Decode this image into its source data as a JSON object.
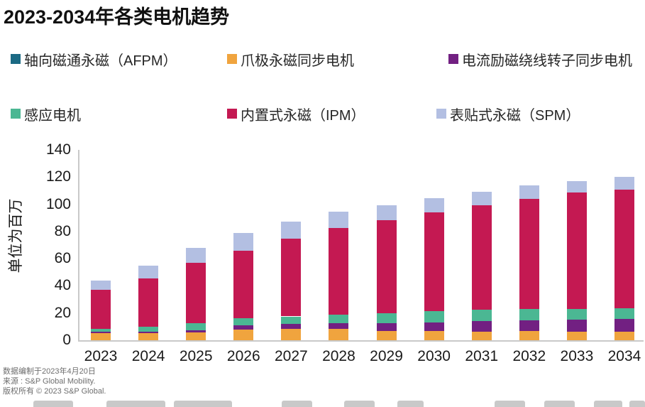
{
  "title": "2023-2034年各类电机趋势",
  "legend": {
    "items": [
      {
        "label": "轴向磁通永磁（AFPM）",
        "color": "#1b6a84"
      },
      {
        "label": "爪极永磁同步电机",
        "color": "#f0a43e"
      },
      {
        "label": "电流励磁绕线转子同步电机",
        "color": "#722082"
      },
      {
        "label": "感应电机",
        "color": "#4bb793"
      },
      {
        "label": "内置式永磁（IPM）",
        "color": "#c41952"
      },
      {
        "label": "表贴式永磁（SPM）",
        "color": "#b3bfe2"
      }
    ]
  },
  "chart_data": {
    "type": "bar",
    "stacked": true,
    "title": "2023-2034年各类电机趋势",
    "xlabel": "",
    "ylabel": "单位为百万",
    "ylim": [
      0,
      140
    ],
    "ytick_step": 20,
    "grid": false,
    "legend_position": "top",
    "categories": [
      "2023",
      "2024",
      "2025",
      "2026",
      "2027",
      "2028",
      "2029",
      "2030",
      "2031",
      "2032",
      "2033",
      "2034"
    ],
    "series": [
      {
        "name": "轴向磁通永磁（AFPM）",
        "color": "#1b6a84",
        "values": [
          0,
          0,
          0,
          0,
          0,
          0,
          0,
          0,
          0,
          0,
          0,
          0
        ]
      },
      {
        "name": "爪极永磁同步电机",
        "color": "#f0a43e",
        "values": [
          5,
          5,
          6,
          8,
          8.5,
          8.5,
          7,
          7,
          6.5,
          7,
          6.5,
          6.5
        ]
      },
      {
        "name": "电流励磁绕线转子同步电机",
        "color": "#722082",
        "values": [
          1.5,
          1.5,
          1.5,
          3,
          3.5,
          4,
          5.5,
          6,
          7.5,
          7.5,
          8.5,
          9
        ]
      },
      {
        "name": "感应电机",
        "color": "#4bb793",
        "values": [
          2,
          3.5,
          5,
          5,
          5.5,
          6.5,
          7.5,
          8.5,
          8.5,
          8.5,
          8,
          8
        ]
      },
      {
        "name": "内置式永磁（IPM）",
        "color": "#c41952",
        "values": [
          28.5,
          35.5,
          44.5,
          50,
          57,
          63.5,
          68.5,
          72.5,
          76.5,
          81,
          85.5,
          87.5
        ]
      },
      {
        "name": "表贴式永磁（SPM）",
        "color": "#b3bfe2",
        "values": [
          7,
          9.5,
          11,
          13,
          12.5,
          12,
          11,
          10.5,
          10,
          10,
          8.5,
          9
        ]
      }
    ],
    "totals": [
      44,
      55,
      68,
      79,
      87,
      94.5,
      99.5,
      104.5,
      109,
      114,
      117,
      120
    ]
  },
  "footer": {
    "lines": [
      "数据编制于2023年4月20日",
      "来源 : S&P Global Mobility.",
      "版权所有 © 2023 S&P Global."
    ]
  }
}
